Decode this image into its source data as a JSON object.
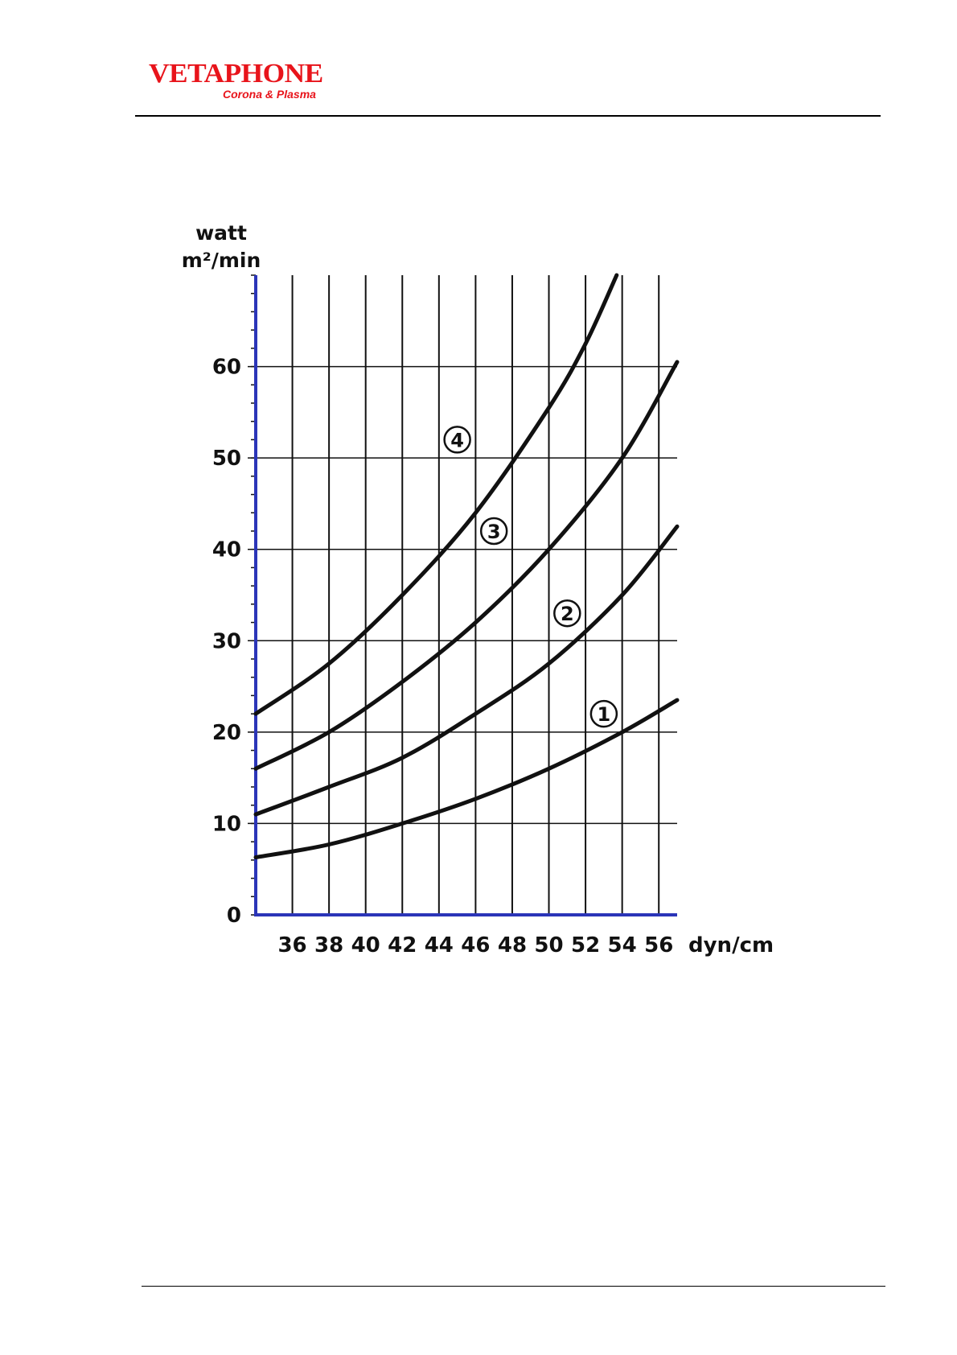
{
  "header": {
    "logo_word": "VETAPHONE",
    "logo_tagline": "Corona & Plasma",
    "brand_color": "#e8141b"
  },
  "colors": {
    "axis": "#2b35b8",
    "grid": "#111111",
    "curve": "#111111"
  },
  "chart_data": {
    "type": "line",
    "ylabel": [
      "watt",
      "m²/min"
    ],
    "xlabel": "dyn/cm",
    "xlim": [
      34,
      57
    ],
    "ylim": [
      0,
      70
    ],
    "x_ticks": [
      36,
      38,
      40,
      42,
      44,
      46,
      48,
      50,
      52,
      54,
      56
    ],
    "y_ticks": [
      0,
      10,
      20,
      30,
      40,
      50,
      60
    ],
    "y_minor_step": 2,
    "grid": true,
    "series": [
      {
        "name": "1",
        "points": [
          [
            34,
            6.3
          ],
          [
            38,
            7.7
          ],
          [
            42,
            10
          ],
          [
            46,
            12.7
          ],
          [
            50,
            16
          ],
          [
            54,
            20
          ],
          [
            57,
            23.5
          ]
        ],
        "label_at": [
          53,
          22
        ]
      },
      {
        "name": "2",
        "points": [
          [
            34,
            11
          ],
          [
            38,
            14
          ],
          [
            42,
            17.2
          ],
          [
            46,
            22
          ],
          [
            50,
            27.5
          ],
          [
            54,
            35
          ],
          [
            57,
            42.5
          ]
        ],
        "label_at": [
          51,
          33
        ]
      },
      {
        "name": "3",
        "points": [
          [
            34,
            16
          ],
          [
            38,
            20
          ],
          [
            42,
            25.5
          ],
          [
            46,
            32
          ],
          [
            50,
            40
          ],
          [
            54,
            50
          ],
          [
            57,
            60.5
          ]
        ],
        "label_at": [
          47,
          42
        ]
      },
      {
        "name": "4",
        "points": [
          [
            34,
            22
          ],
          [
            38,
            27.5
          ],
          [
            42,
            35
          ],
          [
            46,
            44
          ],
          [
            50,
            55.5
          ],
          [
            52,
            62.5
          ],
          [
            53.7,
            70
          ]
        ],
        "label_at": [
          45,
          52
        ]
      }
    ]
  }
}
